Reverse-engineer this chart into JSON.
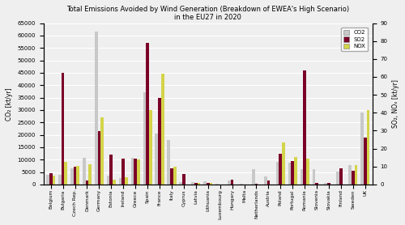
{
  "title_line1": "Total Emissions Avoided by Wind Generation (Breakdown of EWEA's High Scenario)",
  "title_line2": "in the EU27 in 2020",
  "ylabel_left": "CO₂ [kt/yr]",
  "ylabel_right": "SO₂, NOₓ [kt/yr]",
  "countries": [
    "Belgium",
    "Bulgaria",
    "Czech Rep.",
    "Denmark",
    "Germany",
    "Estonia",
    "Ireland",
    "Greece",
    "Spain",
    "France",
    "Italy",
    "Cyprus",
    "Latvia",
    "Lithuania",
    "Luxembourg",
    "Hungary",
    "Malta",
    "Netherlands",
    "Austria",
    "Poland",
    "Portugal",
    "Romania",
    "Slovenia",
    "Slovakia",
    "Finland",
    "Sweden",
    "UK"
  ],
  "CO2": [
    4000,
    4000,
    6500,
    10800,
    61500,
    3500,
    2500,
    10800,
    37000,
    20500,
    18000,
    800,
    900,
    1200,
    200,
    1500,
    300,
    6300,
    3200,
    9000,
    8800,
    6200,
    6200,
    700,
    5300,
    7800,
    29000
  ],
  "SO2": [
    4500,
    45000,
    7000,
    1500,
    21500,
    12000,
    10500,
    10500,
    57000,
    35000,
    6500,
    4200,
    500,
    500,
    0,
    1800,
    0,
    300,
    1500,
    12500,
    9500,
    46000,
    500,
    500,
    6500,
    5500,
    19000
  ],
  "NOX": [
    3500,
    9000,
    7500,
    8000,
    27000,
    2000,
    3000,
    10000,
    30000,
    44500,
    7000,
    0,
    500,
    500,
    0,
    0,
    0,
    0,
    0,
    17000,
    11000,
    10500,
    0,
    0,
    0,
    7800,
    30000
  ],
  "CO2_color": "#c8c8c8",
  "SO2_color": "#7b0028",
  "NOX_color": "#d4d44a",
  "ylim_left": [
    0,
    65000
  ],
  "ylim_right": [
    0,
    90
  ],
  "yticks_left": [
    0,
    5000,
    10000,
    15000,
    20000,
    25000,
    30000,
    35000,
    40000,
    45000,
    50000,
    55000,
    60000,
    65000
  ],
  "yticks_right": [
    0,
    10,
    20,
    30,
    40,
    50,
    60,
    70,
    80,
    90
  ],
  "background_color": "#efefef",
  "grid_color": "#ffffff",
  "bar_width": 0.25
}
